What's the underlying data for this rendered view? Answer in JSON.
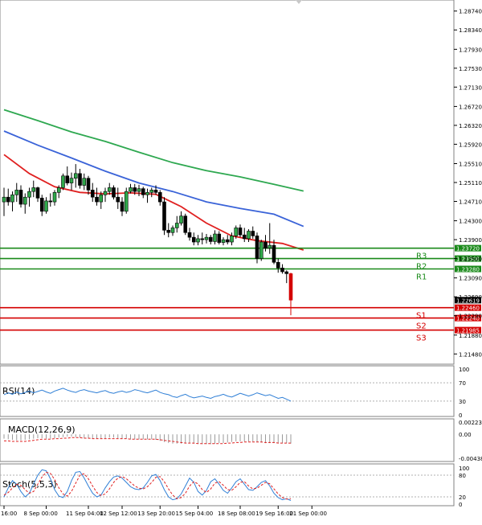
{
  "chart_data": {
    "type": "candlestick",
    "instrument_period": "H4",
    "price_axis": {
      "ylim": [
        1.2128,
        1.2894
      ],
      "ticks": [
        "1.28740",
        "1.28340",
        "1.27930",
        "1.27530",
        "1.27130",
        "1.26720",
        "1.26320",
        "1.25920",
        "1.25510",
        "1.25110",
        "1.24710",
        "1.24300",
        "1.23900",
        "1.23500",
        "1.23090",
        "1.22690",
        "1.22290",
        "1.21880",
        "1.21480"
      ],
      "tick_values": [
        1.2874,
        1.2834,
        1.2793,
        1.2753,
        1.2713,
        1.2672,
        1.2632,
        1.2592,
        1.2551,
        1.2511,
        1.2471,
        1.243,
        1.239,
        1.235,
        1.2309,
        1.2269,
        1.2229,
        1.2188,
        1.2148
      ]
    },
    "levels": [
      {
        "name": "R3",
        "value": 1.2372,
        "label": "1.23720",
        "color": "#1a8a1a"
      },
      {
        "name": "R2",
        "value": 1.235,
        "label": "1.23500",
        "color": "#1a8a1a"
      },
      {
        "name": "R1",
        "value": 1.2328,
        "label": "1.23280",
        "color": "#1a8a1a"
      },
      {
        "name": "S1",
        "value": 1.2246,
        "label": "1.22460",
        "color": "#d40000"
      },
      {
        "name": "S2",
        "value": 1.2224,
        "label": "1.22240",
        "color": "#d40000"
      },
      {
        "name": "S3",
        "value": 1.21985,
        "label": "1.21985",
        "color": "#d40000"
      }
    ],
    "current_price": {
      "value": 1.22619,
      "label": "1.22619"
    },
    "time_labels": [
      "16:00",
      "8 Sep 00:00",
      "11 Sep 04:00",
      "12 Sep 12:00",
      "13 Sep 20:00",
      "15 Sep 04:00",
      "18 Sep 08:00",
      "19 Sep 16:00",
      "21 Sep 00:00"
    ],
    "time_label_index": [
      0,
      10,
      20,
      28,
      37,
      46,
      56,
      65,
      73
    ],
    "moving_averages": [
      {
        "name": "MA fast",
        "color": "#e02020",
        "points": [
          [
            0,
            1.257
          ],
          [
            6,
            1.253
          ],
          [
            12,
            1.2502
          ],
          [
            18,
            1.249
          ],
          [
            24,
            1.2487
          ],
          [
            30,
            1.2489
          ],
          [
            36,
            1.2486
          ],
          [
            42,
            1.246
          ],
          [
            48,
            1.2425
          ],
          [
            54,
            1.2398
          ],
          [
            60,
            1.2388
          ],
          [
            66,
            1.2382
          ],
          [
            71,
            1.2368
          ]
        ]
      },
      {
        "name": "MA mid",
        "color": "#3a63d8",
        "points": [
          [
            0,
            1.262
          ],
          [
            8,
            1.259
          ],
          [
            16,
            1.2563
          ],
          [
            24,
            1.2535
          ],
          [
            32,
            1.251
          ],
          [
            40,
            1.2492
          ],
          [
            48,
            1.247
          ],
          [
            56,
            1.2456
          ],
          [
            64,
            1.2444
          ],
          [
            71,
            1.2418
          ]
        ]
      },
      {
        "name": "MA slow",
        "color": "#2ea850",
        "points": [
          [
            0,
            1.2665
          ],
          [
            8,
            1.2642
          ],
          [
            16,
            1.2618
          ],
          [
            24,
            1.2598
          ],
          [
            32,
            1.2575
          ],
          [
            40,
            1.2553
          ],
          [
            48,
            1.2536
          ],
          [
            56,
            1.2523
          ],
          [
            64,
            1.2507
          ],
          [
            71,
            1.2493
          ]
        ]
      }
    ],
    "candles": [
      [
        1.247,
        1.25,
        1.244,
        1.248
      ],
      [
        1.248,
        1.2498,
        1.2462,
        1.247
      ],
      [
        1.247,
        1.2492,
        1.245,
        1.2485
      ],
      [
        1.2485,
        1.251,
        1.247,
        1.2495
      ],
      [
        1.2495,
        1.2505,
        1.2458,
        1.2465
      ],
      [
        1.2465,
        1.2488,
        1.2445,
        1.248
      ],
      [
        1.248,
        1.25,
        1.246,
        1.2492
      ],
      [
        1.2492,
        1.2515,
        1.248,
        1.25
      ],
      [
        1.25,
        1.2502,
        1.247,
        1.2478
      ],
      [
        1.2478,
        1.2485,
        1.244,
        1.245
      ],
      [
        1.245,
        1.248,
        1.2445,
        1.2472
      ],
      [
        1.2472,
        1.2488,
        1.246,
        1.247
      ],
      [
        1.247,
        1.2495,
        1.2462,
        1.249
      ],
      [
        1.249,
        1.2505,
        1.2478,
        1.25
      ],
      [
        1.25,
        1.253,
        1.2495,
        1.2525
      ],
      [
        1.2525,
        1.2545,
        1.2505,
        1.251
      ],
      [
        1.251,
        1.2532,
        1.2495,
        1.252
      ],
      [
        1.252,
        1.255,
        1.25,
        1.253
      ],
      [
        1.253,
        1.254,
        1.2498,
        1.2505
      ],
      [
        1.2505,
        1.253,
        1.2495,
        1.252
      ],
      [
        1.252,
        1.2525,
        1.2485,
        1.2495
      ],
      [
        1.2495,
        1.251,
        1.247,
        1.248
      ],
      [
        1.248,
        1.25,
        1.2462,
        1.247
      ],
      [
        1.247,
        1.2492,
        1.2455,
        1.2485
      ],
      [
        1.2485,
        1.25,
        1.247,
        1.2492
      ],
      [
        1.2492,
        1.251,
        1.2485,
        1.25
      ],
      [
        1.25,
        1.2505,
        1.2475,
        1.248
      ],
      [
        1.248,
        1.25,
        1.2455,
        1.247
      ],
      [
        1.247,
        1.248,
        1.244,
        1.245
      ],
      [
        1.245,
        1.25,
        1.2445,
        1.2492
      ],
      [
        1.2492,
        1.2508,
        1.2488,
        1.25
      ],
      [
        1.25,
        1.2508,
        1.2485,
        1.2492
      ],
      [
        1.2492,
        1.2506,
        1.2482,
        1.2498
      ],
      [
        1.2498,
        1.2502,
        1.2478,
        1.2485
      ],
      [
        1.2485,
        1.2498,
        1.2468,
        1.249
      ],
      [
        1.249,
        1.25,
        1.248,
        1.2495
      ],
      [
        1.2495,
        1.2505,
        1.2485,
        1.249
      ],
      [
        1.249,
        1.2495,
        1.2462,
        1.247
      ],
      [
        1.247,
        1.248,
        1.24,
        1.241
      ],
      [
        1.241,
        1.2425,
        1.2395,
        1.2405
      ],
      [
        1.2405,
        1.242,
        1.2398,
        1.2415
      ],
      [
        1.2415,
        1.244,
        1.2405,
        1.2425
      ],
      [
        1.2425,
        1.245,
        1.242,
        1.244
      ],
      [
        1.244,
        1.2445,
        1.24,
        1.2405
      ],
      [
        1.2405,
        1.2415,
        1.2388,
        1.2395
      ],
      [
        1.2395,
        1.2405,
        1.2378,
        1.2385
      ],
      [
        1.2385,
        1.24,
        1.2378,
        1.2392
      ],
      [
        1.2392,
        1.2405,
        1.238,
        1.239
      ],
      [
        1.239,
        1.2402,
        1.2382,
        1.2395
      ],
      [
        1.2395,
        1.24,
        1.238,
        1.2386
      ],
      [
        1.2386,
        1.241,
        1.238,
        1.2402
      ],
      [
        1.2402,
        1.2408,
        1.238,
        1.2384
      ],
      [
        1.2384,
        1.2395,
        1.2378,
        1.239
      ],
      [
        1.239,
        1.24,
        1.238,
        1.2385
      ],
      [
        1.2385,
        1.2405,
        1.2378,
        1.2398
      ],
      [
        1.2398,
        1.242,
        1.2392,
        1.2415
      ],
      [
        1.2415,
        1.2422,
        1.2395,
        1.24
      ],
      [
        1.24,
        1.2415,
        1.2385,
        1.2392
      ],
      [
        1.2392,
        1.2412,
        1.2385,
        1.2408
      ],
      [
        1.2408,
        1.2418,
        1.2392,
        1.2398
      ],
      [
        1.2398,
        1.2405,
        1.234,
        1.235
      ],
      [
        1.235,
        1.239,
        1.2345,
        1.2385
      ],
      [
        1.2385,
        1.24,
        1.2365,
        1.2372
      ],
      [
        1.2372,
        1.2425,
        1.236,
        1.2378
      ],
      [
        1.2378,
        1.239,
        1.2338,
        1.2342
      ],
      [
        1.2342,
        1.235,
        1.232,
        1.233
      ],
      [
        1.233,
        1.2338,
        1.2318,
        1.2322
      ],
      [
        1.2322,
        1.2325,
        1.2298,
        1.2318
      ],
      [
        1.2318,
        1.232,
        1.223,
        1.2262
      ]
    ],
    "rsi": {
      "label": "RSI(14)",
      "ylim": [
        0,
        100
      ],
      "ticks": [
        "100",
        "70",
        "30",
        "0"
      ],
      "tick_values": [
        100,
        70,
        30,
        0
      ],
      "levels": [
        70,
        30
      ],
      "color": "#2f7fd6",
      "values": [
        44,
        48,
        45,
        50,
        46,
        49,
        52,
        48,
        51,
        54,
        50,
        47,
        52,
        55,
        58,
        54,
        51,
        49,
        53,
        55,
        52,
        50,
        48,
        51,
        53,
        49,
        47,
        50,
        52,
        49,
        51,
        55,
        53,
        50,
        48,
        51,
        54,
        49,
        46,
        44,
        40,
        38,
        42,
        45,
        40,
        37,
        39,
        41,
        38,
        36,
        40,
        42,
        45,
        41,
        39,
        43,
        47,
        44,
        41,
        44,
        48,
        45,
        42,
        44,
        40,
        36,
        38,
        34,
        30
      ]
    },
    "macd": {
      "label": "MACD(12,26,9)",
      "ylim": [
        -0.004385,
        0.002237
      ],
      "ticks": [
        "0.002237",
        "0.00",
        "-0.004385"
      ],
      "tick_values": [
        0.002237,
        0.0,
        -0.004385
      ],
      "bar_color": "#9a9a9a",
      "signal_color": "#e02020",
      "histogram": [
        -0.0008,
        -0.0009,
        -0.001,
        -0.0011,
        -0.0011,
        -0.001,
        -0.0009,
        -0.0008,
        -0.0007,
        -0.0007,
        -0.0008,
        -0.0008,
        -0.0007,
        -0.0006,
        -0.0005,
        -0.0004,
        -0.0004,
        -0.0005,
        -0.0006,
        -0.0007,
        -0.0008,
        -0.0008,
        -0.0008,
        -0.0007,
        -0.0007,
        -0.0006,
        -0.0006,
        -0.0007,
        -0.0008,
        -0.0008,
        -0.0009,
        -0.0009,
        -0.0009,
        -0.0009,
        -0.0009,
        -0.0009,
        -0.001,
        -0.0012,
        -0.0014,
        -0.0016,
        -0.0017,
        -0.0017,
        -0.0017,
        -0.0016,
        -0.0016,
        -0.0017,
        -0.0017,
        -0.0018,
        -0.0018,
        -0.0018,
        -0.0017,
        -0.0016,
        -0.0016,
        -0.0015,
        -0.0014,
        -0.0013,
        -0.0013,
        -0.0013,
        -0.0013,
        -0.0013,
        -0.0014,
        -0.0015,
        -0.0016,
        -0.0016,
        -0.0016,
        -0.0016,
        -0.0016,
        -0.0016,
        -0.0017
      ],
      "signal": [
        -0.0012,
        -0.0012,
        -0.0013,
        -0.0013,
        -0.0013,
        -0.0013,
        -0.0012,
        -0.0011,
        -0.001,
        -0.0009,
        -0.0009,
        -0.0009,
        -0.0008,
        -0.0008,
        -0.0007,
        -0.0007,
        -0.0006,
        -0.0006,
        -0.0006,
        -0.0007,
        -0.0007,
        -0.0008,
        -0.0008,
        -0.0008,
        -0.0008,
        -0.0008,
        -0.0008,
        -0.0008,
        -0.0008,
        -0.0008,
        -0.0009,
        -0.0009,
        -0.0009,
        -0.0009,
        -0.0009,
        -0.0009,
        -0.0009,
        -0.001,
        -0.0011,
        -0.0012,
        -0.0013,
        -0.0014,
        -0.0015,
        -0.0016,
        -0.0016,
        -0.0016,
        -0.0017,
        -0.0017,
        -0.0017,
        -0.0017,
        -0.0017,
        -0.0017,
        -0.0017,
        -0.0016,
        -0.0016,
        -0.0015,
        -0.0015,
        -0.0014,
        -0.0014,
        -0.0014,
        -0.0014,
        -0.0014,
        -0.0015,
        -0.0015,
        -0.0015,
        -0.0016,
        -0.0016,
        -0.0016,
        -0.0016
      ]
    },
    "stoch": {
      "label": "Stoch(5,5,3)",
      "ylim": [
        0,
        100
      ],
      "ticks": [
        "100",
        "80",
        "20",
        "0"
      ],
      "tick_values": [
        100,
        80,
        20,
        0
      ],
      "levels": [
        80,
        20
      ],
      "main_color": "#2f7fd6",
      "signal_color": "#e02020",
      "main": [
        20,
        45,
        65,
        55,
        35,
        20,
        30,
        55,
        80,
        95,
        92,
        70,
        40,
        22,
        18,
        35,
        65,
        88,
        90,
        72,
        50,
        30,
        20,
        25,
        45,
        62,
        75,
        78,
        72,
        60,
        48,
        42,
        40,
        45,
        60,
        78,
        82,
        65,
        40,
        20,
        12,
        15,
        28,
        50,
        72,
        60,
        35,
        25,
        38,
        62,
        70,
        55,
        38,
        30,
        45,
        62,
        70,
        55,
        40,
        38,
        48,
        60,
        65,
        50,
        30,
        18,
        12,
        15,
        10
      ],
      "signal": [
        25,
        32,
        45,
        55,
        52,
        40,
        30,
        35,
        55,
        75,
        88,
        85,
        68,
        45,
        28,
        22,
        35,
        58,
        80,
        84,
        70,
        50,
        32,
        24,
        28,
        42,
        60,
        72,
        76,
        70,
        60,
        50,
        44,
        42,
        48,
        60,
        74,
        76,
        62,
        42,
        25,
        15,
        18,
        30,
        50,
        62,
        56,
        40,
        32,
        42,
        58,
        62,
        52,
        40,
        38,
        48,
        60,
        62,
        50,
        42,
        44,
        52,
        60,
        56,
        42,
        28,
        18,
        14,
        15
      ]
    }
  }
}
